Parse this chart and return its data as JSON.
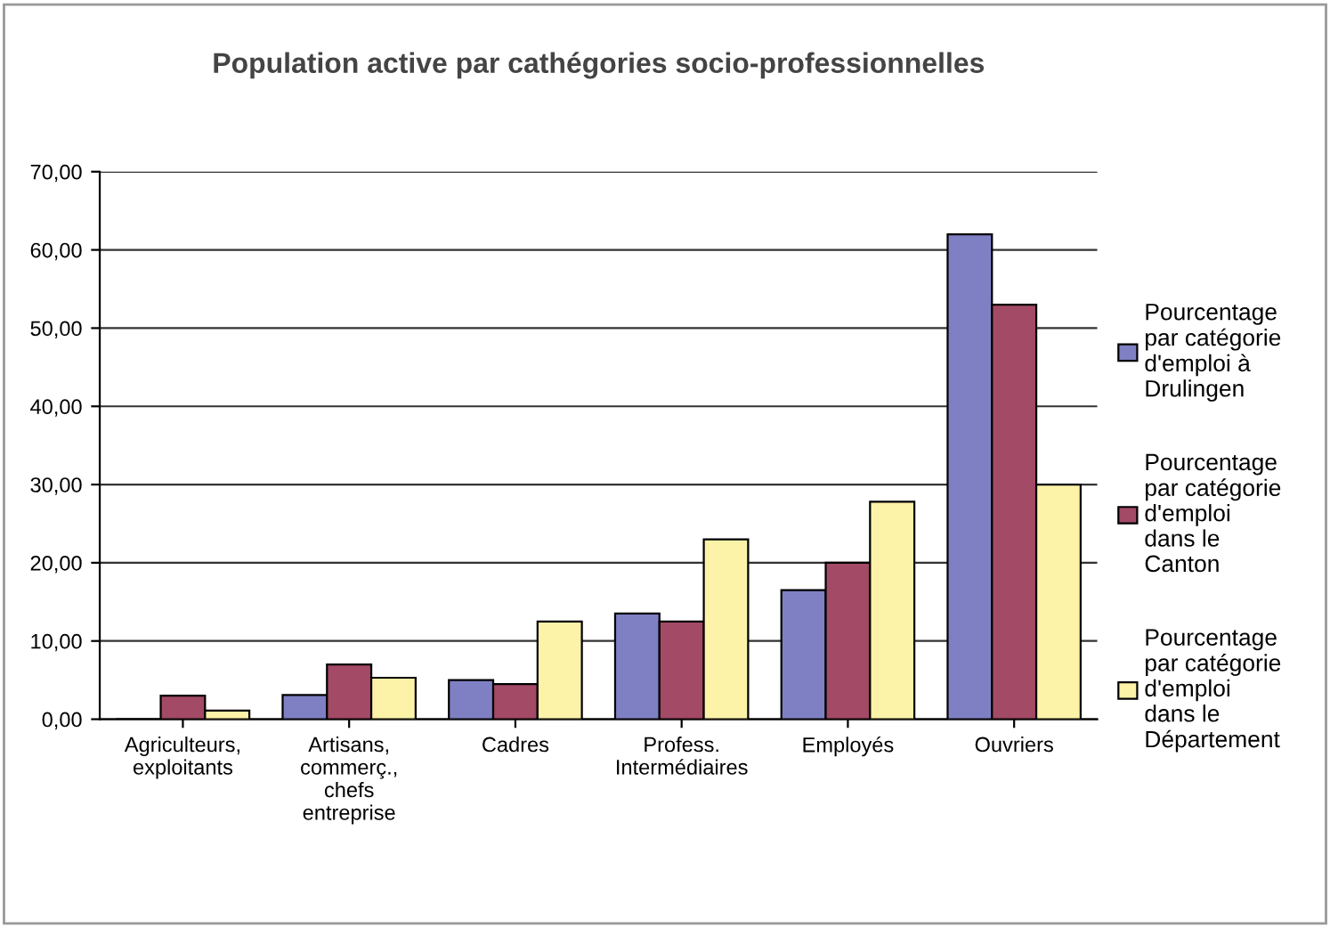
{
  "chart_data": {
    "type": "bar",
    "title": "Population active par cathégories socio-professionnelles",
    "categories": [
      "Agriculteurs,\nexploitants",
      "Artisans,\ncommerç.,\nchefs\nentreprise",
      "Cadres",
      "Profess.\nIntermédiaires",
      "Employés",
      "Ouvriers"
    ],
    "series": [
      {
        "name": "Pourcentage\npar catégorie\nd'emploi à\nDrulingen",
        "color": "#7f80c4",
        "values": [
          0,
          3.1,
          5,
          13.5,
          16.5,
          62
        ]
      },
      {
        "name": "Pourcentage\npar catégorie\nd'emploi\ndans le\nCanton",
        "color": "#a34a66",
        "values": [
          3,
          7,
          4.5,
          12.5,
          20,
          53
        ]
      },
      {
        "name": "Pourcentage\npar catégorie\nd'emploi\ndans le\nDépartement",
        "color": "#fdf3a8",
        "values": [
          1.1,
          5.3,
          12.5,
          23,
          27.8,
          30
        ]
      }
    ],
    "ylim": [
      0,
      70
    ],
    "yticks": [
      {
        "value": 0,
        "label": "0,00"
      },
      {
        "value": 10,
        "label": "10,00"
      },
      {
        "value": 20,
        "label": "20,00"
      },
      {
        "value": 30,
        "label": "30,00"
      },
      {
        "value": 40,
        "label": "40,00"
      },
      {
        "value": 50,
        "label": "50,00"
      },
      {
        "value": 60,
        "label": "60,00"
      },
      {
        "value": 70,
        "label": "70,00"
      }
    ],
    "grid": "y",
    "legend": "right"
  }
}
